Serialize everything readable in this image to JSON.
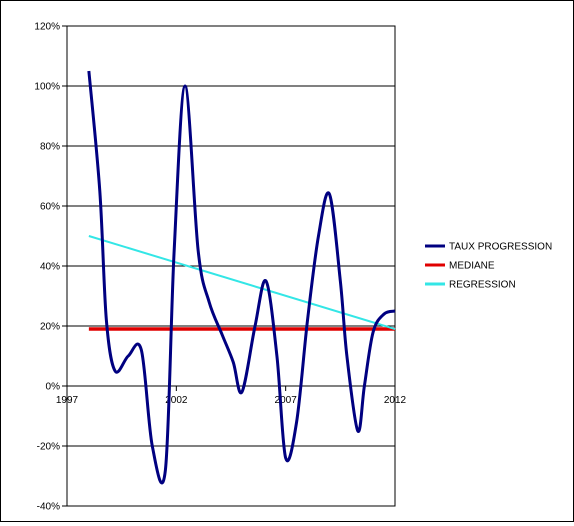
{
  "chart_data": {
    "type": "line",
    "title": "",
    "xlabel": "",
    "ylabel": "",
    "xlim": [
      1997,
      2012
    ],
    "ylim": [
      -0.4,
      1.2
    ],
    "x_ticks": [
      1997,
      2002,
      2007,
      2012
    ],
    "x_tick_labels": [
      "1997",
      "2002",
      "2007",
      "2012"
    ],
    "y_ticks": [
      -0.4,
      -0.2,
      0,
      0.2,
      0.4,
      0.6,
      0.8,
      1.0,
      1.2
    ],
    "y_tick_labels": [
      "-40%",
      "-20%",
      "0%",
      "20%",
      "40%",
      "60%",
      "80%",
      "100%",
      "120%"
    ],
    "grid": "horizontal",
    "legend_position": "right",
    "series": [
      {
        "name": "TAUX PROGRESSION",
        "color": "#000080",
        "x": [
          1998,
          1998.5,
          1998.8,
          1999.2,
          1999.8,
          2000.4,
          2000.9,
          2001.5,
          2001.9,
          2002.4,
          2003.0,
          2003.5,
          2004.1,
          2004.6,
          2005.0,
          2005.6,
          2006.1,
          2006.6,
          2007.0,
          2007.5,
          2008.0,
          2008.5,
          2009.0,
          2009.5,
          2009.8,
          2010.3,
          2010.6,
          2011.0,
          2011.5,
          2012
        ],
        "y": [
          1.05,
          0.65,
          0.22,
          0.05,
          0.1,
          0.12,
          -0.2,
          -0.28,
          0.45,
          1.0,
          0.45,
          0.28,
          0.17,
          0.08,
          -0.02,
          0.2,
          0.35,
          0.1,
          -0.24,
          -0.12,
          0.22,
          0.5,
          0.64,
          0.35,
          0.1,
          -0.15,
          0.0,
          0.18,
          0.24,
          0.25
        ]
      },
      {
        "name": "MEDIANE",
        "color": "#e00000",
        "x": [
          1998,
          2012
        ],
        "y": [
          0.19,
          0.19
        ]
      },
      {
        "name": "REGRESSION",
        "color": "#33e6e6",
        "x": [
          1998,
          2012
        ],
        "y": [
          0.5,
          0.19
        ]
      }
    ]
  }
}
